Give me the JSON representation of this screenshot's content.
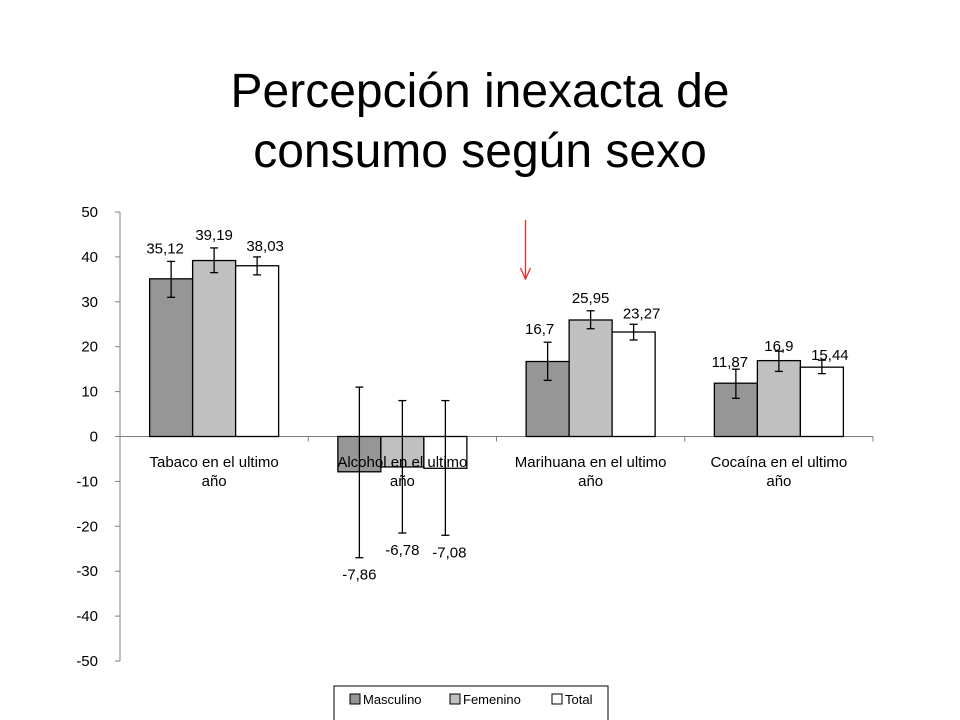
{
  "slide": {
    "title_line1": "Percepción inexacta de",
    "title_line2": "consumo según sexo"
  },
  "chart_data": {
    "type": "bar",
    "title": "",
    "xlabel": "",
    "ylabel": "",
    "ylim": [
      -50,
      50
    ],
    "yticks": [
      50,
      40,
      30,
      20,
      10,
      0,
      -10,
      -20,
      -30,
      -40,
      -50
    ],
    "grid": false,
    "legend_position": "bottom",
    "categories": [
      [
        "Tabaco en el ultimo",
        "año"
      ],
      [
        "Alcohol en el ultimo",
        "año"
      ],
      [
        "Marihuana en el ultimo",
        "año"
      ],
      [
        "Cocaína en el ultimo",
        "año"
      ]
    ],
    "series": [
      {
        "name": "Masculino",
        "color": "#969696",
        "values": [
          35.12,
          -7.86,
          16.7,
          11.87
        ],
        "labels": [
          "35,12",
          "-7,86",
          "16,7",
          "11,87"
        ],
        "error_low": [
          31,
          -27,
          12.5,
          8.5
        ],
        "error_high": [
          39,
          11,
          21,
          15
        ]
      },
      {
        "name": "Femenino",
        "color": "#c0c0c0",
        "values": [
          39.19,
          -6.78,
          25.95,
          16.9
        ],
        "labels": [
          "39,19",
          "-6,78",
          "25,95",
          "16,9"
        ],
        "error_low": [
          36.5,
          -21.5,
          24,
          14.5
        ],
        "error_high": [
          42,
          8,
          28,
          19
        ]
      },
      {
        "name": "Total",
        "color": "#ffffff",
        "values": [
          38.03,
          -7.08,
          23.27,
          15.44
        ],
        "labels": [
          "38,03",
          "-7,08",
          "23,27",
          "15,44"
        ],
        "error_low": [
          36,
          -22,
          21.5,
          14
        ],
        "error_high": [
          40,
          8,
          25,
          17
        ]
      }
    ],
    "annotations": [
      {
        "type": "arrow",
        "color": "#e03030",
        "points_to": "Marihuana en el ultimo año"
      }
    ]
  }
}
